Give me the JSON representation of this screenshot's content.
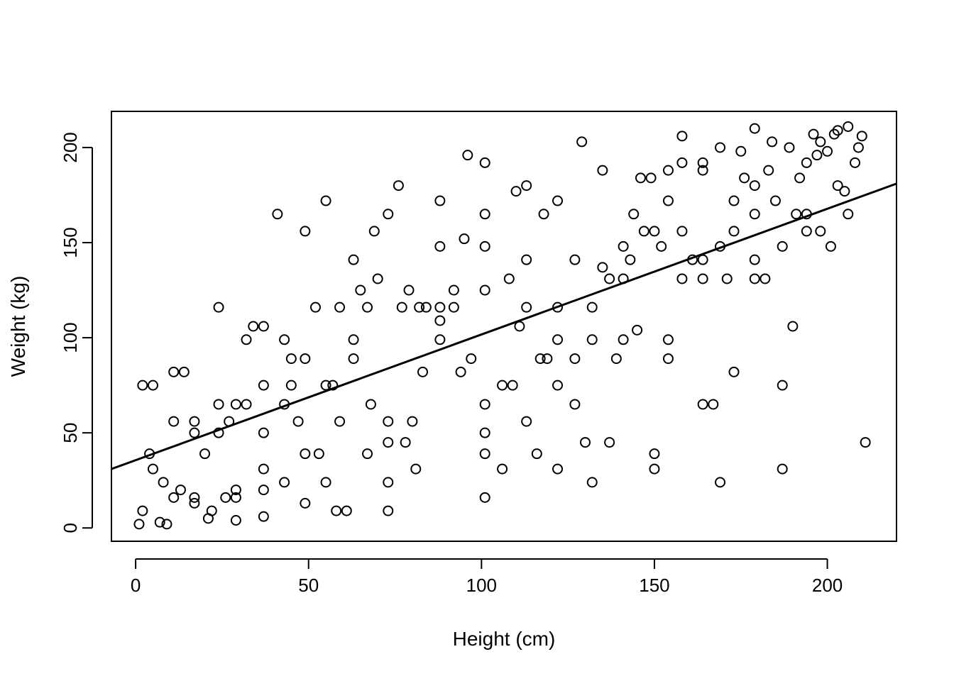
{
  "chart_data": {
    "type": "scatter",
    "title": "",
    "xlabel": "Height (cm)",
    "ylabel": "Weight (kg)",
    "xlim": [
      -7,
      220
    ],
    "ylim": [
      -7,
      219
    ],
    "x_ticks": [
      0,
      50,
      100,
      150,
      200
    ],
    "x_tick_labels": [
      "0",
      "50",
      "100",
      "150",
      "200"
    ],
    "y_ticks": [
      0,
      50,
      100,
      150,
      200
    ],
    "y_tick_labels": [
      "0",
      "50",
      "100",
      "150",
      "200"
    ],
    "grid": false,
    "colors": {
      "points": "#000000",
      "line": "#000000",
      "background": "#ffffff"
    },
    "regression_line": {
      "x": [
        -7,
        220
      ],
      "y": [
        31,
        181
      ]
    },
    "points": [
      [
        1,
        2
      ],
      [
        2,
        75
      ],
      [
        2,
        9
      ],
      [
        4,
        39
      ],
      [
        5,
        75
      ],
      [
        5,
        31
      ],
      [
        7,
        3
      ],
      [
        8,
        24
      ],
      [
        9,
        2
      ],
      [
        11,
        82
      ],
      [
        11,
        56
      ],
      [
        11,
        16
      ],
      [
        13,
        20
      ],
      [
        14,
        82
      ],
      [
        17,
        56
      ],
      [
        17,
        50
      ],
      [
        17,
        16
      ],
      [
        17,
        13
      ],
      [
        20,
        39
      ],
      [
        21,
        5
      ],
      [
        22,
        9
      ],
      [
        24,
        116
      ],
      [
        24,
        65
      ],
      [
        24,
        50
      ],
      [
        26,
        16
      ],
      [
        27,
        56
      ],
      [
        29,
        65
      ],
      [
        29,
        20
      ],
      [
        29,
        16
      ],
      [
        29,
        4
      ],
      [
        32,
        99
      ],
      [
        32,
        65
      ],
      [
        34,
        106
      ],
      [
        37,
        106
      ],
      [
        37,
        75
      ],
      [
        37,
        50
      ],
      [
        37,
        31
      ],
      [
        37,
        20
      ],
      [
        37,
        6
      ],
      [
        41,
        165
      ],
      [
        43,
        99
      ],
      [
        43,
        65
      ],
      [
        43,
        24
      ],
      [
        45,
        89
      ],
      [
        45,
        75
      ],
      [
        47,
        56
      ],
      [
        49,
        156
      ],
      [
        49,
        89
      ],
      [
        49,
        39
      ],
      [
        49,
        13
      ],
      [
        52,
        116
      ],
      [
        53,
        39
      ],
      [
        55,
        172
      ],
      [
        55,
        75
      ],
      [
        55,
        24
      ],
      [
        57,
        75
      ],
      [
        58,
        9
      ],
      [
        59,
        116
      ],
      [
        59,
        56
      ],
      [
        61,
        9
      ],
      [
        63,
        141
      ],
      [
        63,
        99
      ],
      [
        63,
        89
      ],
      [
        65,
        125
      ],
      [
        67,
        116
      ],
      [
        67,
        39
      ],
      [
        68,
        65
      ],
      [
        69,
        156
      ],
      [
        70,
        131
      ],
      [
        73,
        165
      ],
      [
        73,
        56
      ],
      [
        73,
        45
      ],
      [
        73,
        24
      ],
      [
        73,
        9
      ],
      [
        76,
        180
      ],
      [
        77,
        116
      ],
      [
        78,
        45
      ],
      [
        79,
        125
      ],
      [
        80,
        56
      ],
      [
        81,
        31
      ],
      [
        82,
        116
      ],
      [
        83,
        82
      ],
      [
        84,
        116
      ],
      [
        88,
        172
      ],
      [
        88,
        148
      ],
      [
        88,
        116
      ],
      [
        88,
        109
      ],
      [
        88,
        99
      ],
      [
        92,
        125
      ],
      [
        92,
        116
      ],
      [
        94,
        82
      ],
      [
        95,
        152
      ],
      [
        96,
        196
      ],
      [
        97,
        89
      ],
      [
        101,
        192
      ],
      [
        101,
        165
      ],
      [
        101,
        148
      ],
      [
        101,
        125
      ],
      [
        101,
        65
      ],
      [
        101,
        50
      ],
      [
        101,
        39
      ],
      [
        101,
        16
      ],
      [
        106,
        75
      ],
      [
        106,
        31
      ],
      [
        108,
        131
      ],
      [
        109,
        75
      ],
      [
        110,
        177
      ],
      [
        111,
        106
      ],
      [
        113,
        180
      ],
      [
        113,
        141
      ],
      [
        113,
        116
      ],
      [
        113,
        56
      ],
      [
        116,
        39
      ],
      [
        117,
        89
      ],
      [
        118,
        165
      ],
      [
        119,
        89
      ],
      [
        122,
        172
      ],
      [
        122,
        116
      ],
      [
        122,
        99
      ],
      [
        122,
        75
      ],
      [
        122,
        31
      ],
      [
        127,
        141
      ],
      [
        127,
        89
      ],
      [
        127,
        65
      ],
      [
        129,
        203
      ],
      [
        130,
        45
      ],
      [
        132,
        116
      ],
      [
        132,
        99
      ],
      [
        132,
        24
      ],
      [
        135,
        188
      ],
      [
        135,
        137
      ],
      [
        137,
        131
      ],
      [
        137,
        45
      ],
      [
        139,
        89
      ],
      [
        141,
        148
      ],
      [
        141,
        131
      ],
      [
        141,
        99
      ],
      [
        143,
        141
      ],
      [
        144,
        165
      ],
      [
        145,
        104
      ],
      [
        146,
        184
      ],
      [
        147,
        156
      ],
      [
        149,
        184
      ],
      [
        150,
        156
      ],
      [
        150,
        39
      ],
      [
        150,
        31
      ],
      [
        152,
        148
      ],
      [
        154,
        188
      ],
      [
        154,
        172
      ],
      [
        154,
        99
      ],
      [
        154,
        89
      ],
      [
        158,
        206
      ],
      [
        158,
        192
      ],
      [
        158,
        156
      ],
      [
        158,
        131
      ],
      [
        161,
        141
      ],
      [
        164,
        192
      ],
      [
        164,
        188
      ],
      [
        164,
        141
      ],
      [
        164,
        131
      ],
      [
        164,
        65
      ],
      [
        167,
        65
      ],
      [
        169,
        200
      ],
      [
        169,
        148
      ],
      [
        169,
        24
      ],
      [
        171,
        131
      ],
      [
        173,
        172
      ],
      [
        173,
        156
      ],
      [
        173,
        82
      ],
      [
        175,
        198
      ],
      [
        176,
        184
      ],
      [
        179,
        210
      ],
      [
        179,
        180
      ],
      [
        179,
        165
      ],
      [
        179,
        141
      ],
      [
        179,
        131
      ],
      [
        182,
        131
      ],
      [
        183,
        188
      ],
      [
        184,
        203
      ],
      [
        185,
        172
      ],
      [
        187,
        148
      ],
      [
        187,
        75
      ],
      [
        187,
        31
      ],
      [
        189,
        200
      ],
      [
        190,
        106
      ],
      [
        191,
        165
      ],
      [
        192,
        184
      ],
      [
        194,
        192
      ],
      [
        194,
        165
      ],
      [
        194,
        156
      ],
      [
        196,
        207
      ],
      [
        197,
        196
      ],
      [
        198,
        203
      ],
      [
        198,
        156
      ],
      [
        200,
        198
      ],
      [
        201,
        148
      ],
      [
        202,
        207
      ],
      [
        203,
        180
      ],
      [
        203,
        209
      ],
      [
        205,
        177
      ],
      [
        206,
        211
      ],
      [
        206,
        165
      ],
      [
        208,
        192
      ],
      [
        209,
        200
      ],
      [
        210,
        206
      ],
      [
        211,
        45
      ]
    ]
  }
}
